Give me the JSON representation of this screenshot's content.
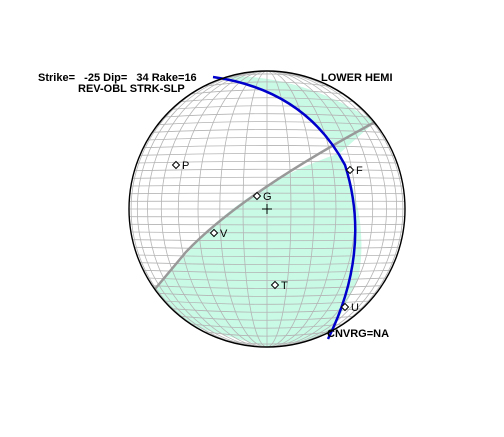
{
  "header": {
    "strike_line": "Strike=   -25 Dip=   34 Rake=16",
    "fault_type": "REV-OBL STRK-SLP",
    "hemisphere": "LOWER HEMI"
  },
  "footer": {
    "convergence": "CNVRG=NA"
  },
  "mechanism": {
    "strike": -25,
    "dip": 34,
    "rake": 16,
    "projection": "lower-hemisphere"
  },
  "points": [
    {
      "label": "P",
      "marker": "diamond"
    },
    {
      "label": "G",
      "marker": "diamond"
    },
    {
      "label": "F",
      "marker": "diamond"
    },
    {
      "label": "V",
      "marker": "diamond"
    },
    {
      "label": "T",
      "marker": "diamond"
    },
    {
      "label": "U",
      "marker": "diamond"
    }
  ],
  "colors": {
    "compression_fill": "#c8fae6",
    "fault_plane": "#0000cc",
    "auxiliary_plane": "#999999",
    "grid": "#b4b4b4",
    "outline": "#000000"
  }
}
